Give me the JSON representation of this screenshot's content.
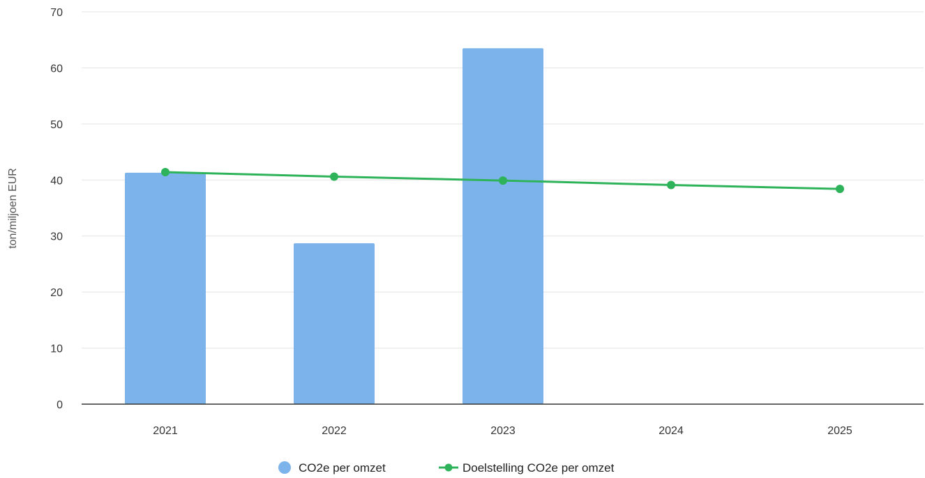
{
  "chart_data": {
    "type": "bar",
    "categories": [
      "2021",
      "2022",
      "2023",
      "2024",
      "2025"
    ],
    "series": [
      {
        "name": "CO2e per omzet",
        "kind": "bar",
        "color": "#7cb3ea",
        "values": [
          41.3,
          28.7,
          63.5,
          null,
          null
        ]
      },
      {
        "name": "Doelstelling CO2e per omzet",
        "kind": "line",
        "color": "#2fb35a",
        "values": [
          41.4,
          40.6,
          39.9,
          39.1,
          38.4
        ]
      }
    ],
    "ylabel": "ton/miljoen EUR",
    "xlabel": "",
    "ylim": [
      0,
      70
    ],
    "yticks": [
      0,
      10,
      20,
      30,
      40,
      50,
      60,
      70
    ],
    "grid": true,
    "legend_position": "bottom"
  }
}
